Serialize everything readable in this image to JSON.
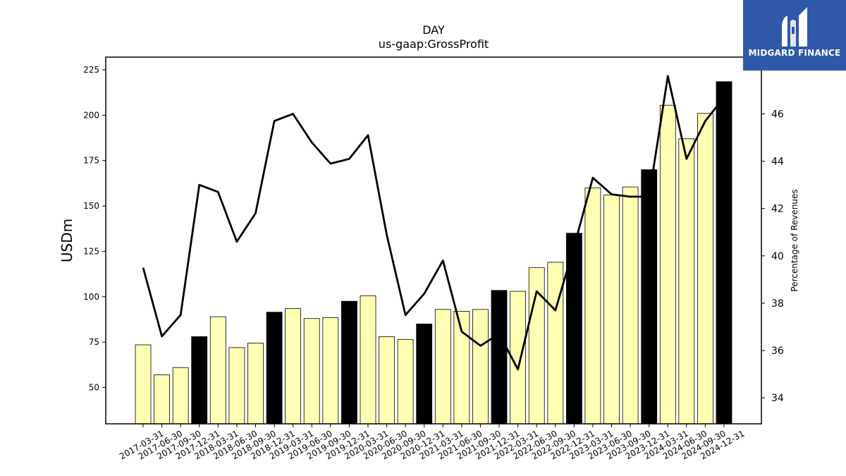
{
  "brand": {
    "name": "MIDGARD FINANCE",
    "logo_icon": "midgard-logo-icon",
    "background": "#2f59a8"
  },
  "chart_data": {
    "type": "bar",
    "title": "DAY",
    "subtitle": "us-gaap:GrossProfit",
    "ylabel": "USDm",
    "y2label": "Percentage of Revenues",
    "ylim": [
      30,
      232
    ],
    "y2lim": [
      32.9,
      48.4
    ],
    "yticks": [
      50,
      75,
      100,
      125,
      150,
      175,
      200,
      225
    ],
    "y2ticks": [
      34,
      36,
      38,
      40,
      42,
      44,
      46
    ],
    "grid": false,
    "legend": "none",
    "colors": {
      "bar": "#ffffb3",
      "bar_q4": "#000000",
      "line": "#000000"
    },
    "categories": [
      "2017-03-31",
      "2017-06-30",
      "2017-09-30",
      "2017-12-31",
      "2018-03-31",
      "2018-06-30",
      "2018-09-30",
      "2018-12-31",
      "2019-03-31",
      "2019-06-30",
      "2019-09-30",
      "2019-12-31",
      "2020-03-31",
      "2020-06-30",
      "2020-09-30",
      "2020-12-31",
      "2021-03-31",
      "2021-06-30",
      "2021-09-30",
      "2021-12-31",
      "2022-03-31",
      "2022-06-30",
      "2022-09-30",
      "2022-12-31",
      "2023-03-31",
      "2023-06-30",
      "2023-09-30",
      "2023-12-31",
      "2024-03-31",
      "2024-06-30",
      "2024-09-30",
      "2024-12-31"
    ],
    "series": [
      {
        "type": "bar",
        "values": [
          73.5,
          57,
          61,
          78,
          89,
          72,
          74.5,
          91.5,
          93.5,
          88,
          88.5,
          97.5,
          100.5,
          78,
          76.5,
          85,
          93,
          92,
          93,
          103.5,
          103,
          116,
          119,
          135,
          160,
          156,
          160.5,
          170,
          205.5,
          187,
          201,
          218.5
        ]
      },
      {
        "type": "line",
        "axis": "right",
        "values": [
          39.5,
          36.6,
          37.5,
          43.0,
          42.7,
          40.6,
          41.8,
          45.7,
          46.0,
          44.8,
          43.9,
          44.1,
          45.1,
          40.9,
          37.5,
          38.4,
          39.8,
          36.8,
          36.2,
          36.7,
          35.2,
          38.5,
          37.7,
          40.4,
          43.3,
          42.6,
          42.5,
          42.5,
          47.6,
          44.1,
          45.7,
          46.7
        ]
      }
    ]
  }
}
